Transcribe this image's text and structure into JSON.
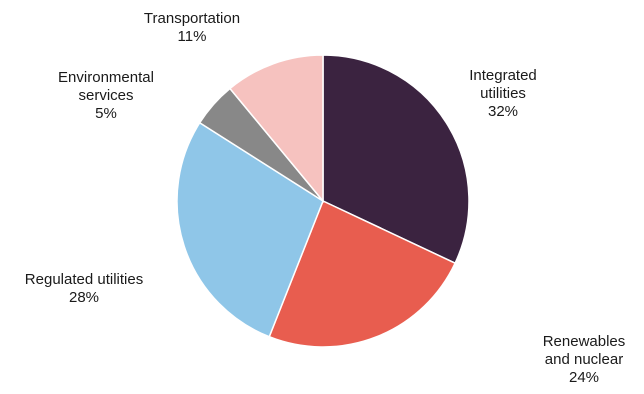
{
  "chart_data": {
    "type": "pie",
    "title": "",
    "slices": [
      {
        "label": [
          "Integrated",
          "utilities"
        ],
        "value": 32,
        "value_text": "32%",
        "color": "#3b2340"
      },
      {
        "label": [
          "Renewables",
          "and nuclear"
        ],
        "value": 24,
        "value_text": "24%",
        "color": "#e85d4f"
      },
      {
        "label": [
          "Regulated utilities"
        ],
        "value": 28,
        "value_text": "28%",
        "color": "#8fc6e8"
      },
      {
        "label": [
          "Environmental",
          "services"
        ],
        "value": 5,
        "value_text": "5%",
        "color": "#888888"
      },
      {
        "label": [
          "Transportation"
        ],
        "value": 11,
        "value_text": "11%",
        "color": "#f6c2bf"
      }
    ],
    "start_angle": "12 o'clock",
    "direction": "clockwise",
    "legend": "none"
  }
}
